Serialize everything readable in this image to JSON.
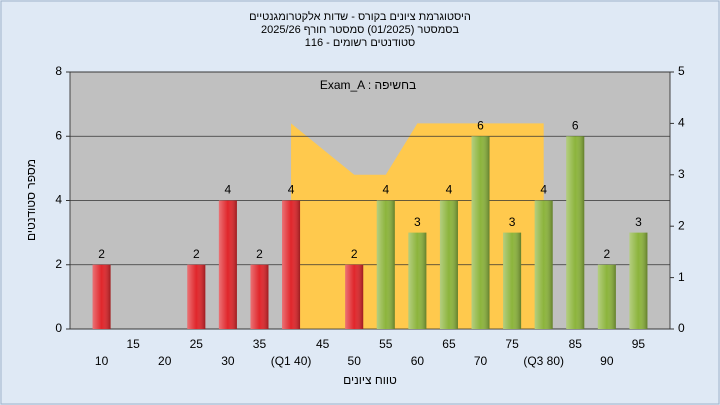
{
  "chart_data": {
    "type": "bar",
    "title": "היסטוגרמת ציונים בקורס - שדות אלקטרומגנטיים",
    "subtitle": "בסמסטר  (01/2025)  סמסטר חורף 2025/26",
    "subtitle2": "סטודנטים רשומים - 116",
    "annotation": "Exam_A : בחשיפה",
    "xlabel": "טווח ציונים",
    "ylabel": "מספר סטודנטים",
    "categories": [
      "10",
      "15",
      "20",
      "25",
      "30",
      "35",
      "(Q1 40)",
      "45",
      "50",
      "55",
      "60",
      "65",
      "70",
      "75",
      "(Q3 80)",
      "85",
      "90",
      "95"
    ],
    "values": [
      2,
      0,
      0,
      2,
      4,
      2,
      4,
      0,
      2,
      4,
      3,
      4,
      6,
      3,
      4,
      6,
      2,
      3
    ],
    "colors": [
      "#e0262b",
      "#e0262b",
      "#e0262b",
      "#e0262b",
      "#e0262b",
      "#e0262b",
      "#e0262b",
      "#e0262b",
      "#e0262b",
      "#8cb43c",
      "#8cb43c",
      "#8cb43c",
      "#8cb43c",
      "#8cb43c",
      "#8cb43c",
      "#8cb43c",
      "#8cb43c",
      "#8cb43c"
    ],
    "area": {
      "color": "#ffc94d",
      "axis": "y2",
      "values": [
        null,
        null,
        null,
        null,
        null,
        null,
        4,
        3.5,
        3,
        3,
        4,
        4,
        4,
        4,
        4,
        null,
        null,
        null
      ]
    },
    "ylim": [
      0,
      8
    ],
    "yticks": [
      0,
      2,
      4,
      6,
      8
    ],
    "y2lim": [
      0,
      5
    ],
    "y2ticks": [
      0,
      1,
      2,
      3,
      4,
      5
    ],
    "grid": true
  }
}
